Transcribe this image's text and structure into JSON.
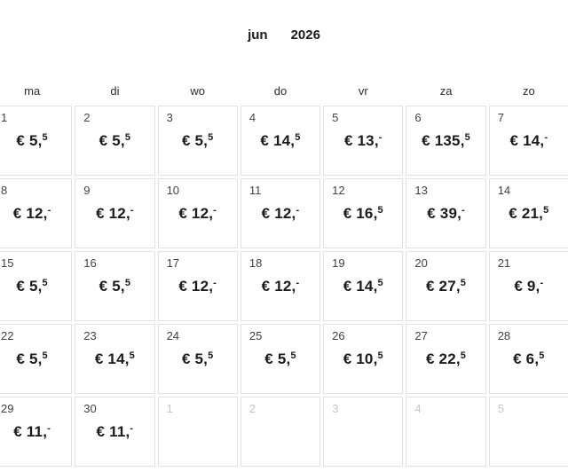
{
  "header": {
    "month": "jun",
    "year": "2026"
  },
  "weekdays": [
    "ma",
    "di",
    "wo",
    "do",
    "vr",
    "za",
    "zo"
  ],
  "days": [
    {
      "day": "1",
      "price": "€ 5,",
      "sup": "5",
      "outside": false
    },
    {
      "day": "2",
      "price": "€ 5,",
      "sup": "5",
      "outside": false
    },
    {
      "day": "3",
      "price": "€ 5,",
      "sup": "5",
      "outside": false
    },
    {
      "day": "4",
      "price": "€ 14,",
      "sup": "5",
      "outside": false
    },
    {
      "day": "5",
      "price": "€ 13,",
      "sup": "-",
      "outside": false
    },
    {
      "day": "6",
      "price": "€ 135,",
      "sup": "5",
      "outside": false
    },
    {
      "day": "7",
      "price": "€ 14,",
      "sup": "-",
      "outside": false
    },
    {
      "day": "8",
      "price": "€ 12,",
      "sup": "-",
      "outside": false
    },
    {
      "day": "9",
      "price": "€ 12,",
      "sup": "-",
      "outside": false
    },
    {
      "day": "10",
      "price": "€ 12,",
      "sup": "-",
      "outside": false
    },
    {
      "day": "11",
      "price": "€ 12,",
      "sup": "-",
      "outside": false
    },
    {
      "day": "12",
      "price": "€ 16,",
      "sup": "5",
      "outside": false
    },
    {
      "day": "13",
      "price": "€ 39,",
      "sup": "-",
      "outside": false
    },
    {
      "day": "14",
      "price": "€ 21,",
      "sup": "5",
      "outside": false
    },
    {
      "day": "15",
      "price": "€ 5,",
      "sup": "5",
      "outside": false
    },
    {
      "day": "16",
      "price": "€ 5,",
      "sup": "5",
      "outside": false
    },
    {
      "day": "17",
      "price": "€ 12,",
      "sup": "-",
      "outside": false
    },
    {
      "day": "18",
      "price": "€ 12,",
      "sup": "-",
      "outside": false
    },
    {
      "day": "19",
      "price": "€ 14,",
      "sup": "5",
      "outside": false
    },
    {
      "day": "20",
      "price": "€ 27,",
      "sup": "5",
      "outside": false
    },
    {
      "day": "21",
      "price": "€ 9,",
      "sup": "-",
      "outside": false
    },
    {
      "day": "22",
      "price": "€ 5,",
      "sup": "5",
      "outside": false
    },
    {
      "day": "23",
      "price": "€ 14,",
      "sup": "5",
      "outside": false
    },
    {
      "day": "24",
      "price": "€ 5,",
      "sup": "5",
      "outside": false
    },
    {
      "day": "25",
      "price": "€ 5,",
      "sup": "5",
      "outside": false
    },
    {
      "day": "26",
      "price": "€ 10,",
      "sup": "5",
      "outside": false
    },
    {
      "day": "27",
      "price": "€ 22,",
      "sup": "5",
      "outside": false
    },
    {
      "day": "28",
      "price": "€ 6,",
      "sup": "5",
      "outside": false
    },
    {
      "day": "29",
      "price": "€ 11,",
      "sup": "-",
      "outside": false
    },
    {
      "day": "30",
      "price": "€ 11,",
      "sup": "-",
      "outside": false
    },
    {
      "day": "1",
      "price": "",
      "sup": "",
      "outside": true
    },
    {
      "day": "2",
      "price": "",
      "sup": "",
      "outside": true
    },
    {
      "day": "3",
      "price": "",
      "sup": "",
      "outside": true
    },
    {
      "day": "4",
      "price": "",
      "sup": "",
      "outside": true
    },
    {
      "day": "5",
      "price": "",
      "sup": "",
      "outside": true
    }
  ],
  "colors": {
    "background": "#ffffff",
    "cell_border": "#e2e2e2",
    "title_text": "#1b1b1b",
    "weekday_text": "#2d2d2d",
    "day_number": "#424242",
    "day_number_outside": "#c6c6c6",
    "price_text": "#1b1b1b"
  }
}
